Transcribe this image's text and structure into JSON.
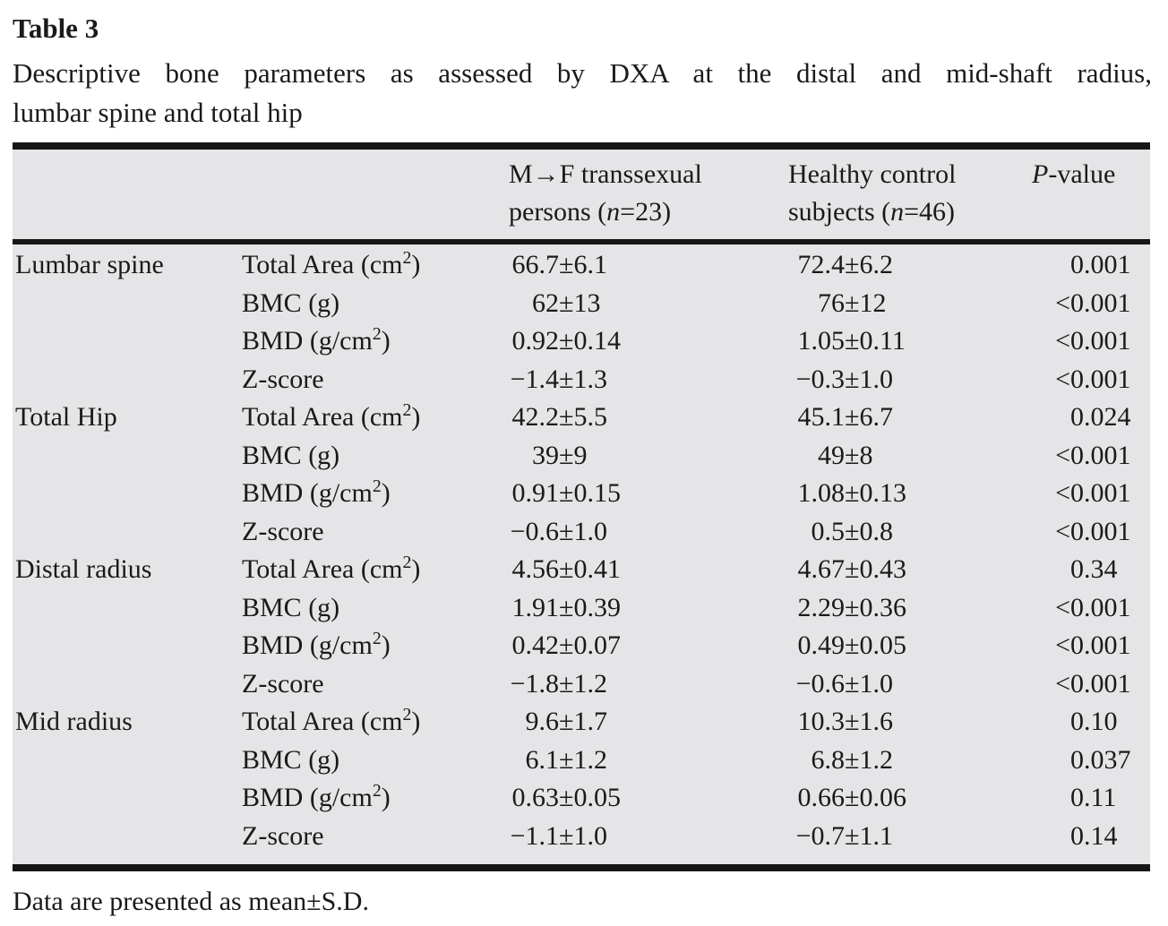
{
  "title": "Table 3",
  "caption_line1": "Descriptive bone parameters as assessed by DXA at the distal and mid-shaft radius,",
  "caption_line2": "lumbar spine and total hip",
  "columns": {
    "transsexual_line1": "M→F transsexual",
    "transsexual_line2": "persons (n=23)",
    "control_line1": "Healthy control",
    "control_line2": "subjects (n=46)",
    "p_value": "P-value"
  },
  "sections": [
    {
      "site": "Lumbar spine",
      "rows": [
        {
          "param": "Total Area (cm²)",
          "mf": "66.7±6.1",
          "hc": "72.4±6.2",
          "p": "0.001"
        },
        {
          "param": "BMC (g)",
          "mf": "62±13",
          "hc": "76±12",
          "p": "<0.001"
        },
        {
          "param": "BMD (g/cm²)",
          "mf": "0.92±0.14",
          "hc": "1.05±0.11",
          "p": "<0.001"
        },
        {
          "param": "Z-score",
          "mf": "−1.4±1.3",
          "hc": "−0.3±1.0",
          "p": "<0.001"
        }
      ]
    },
    {
      "site": "Total Hip",
      "rows": [
        {
          "param": "Total Area (cm²)",
          "mf": "42.2±5.5",
          "hc": "45.1±6.7",
          "p": "0.024"
        },
        {
          "param": "BMC (g)",
          "mf": "39±9",
          "hc": "49±8",
          "p": "<0.001"
        },
        {
          "param": "BMD (g/cm²)",
          "mf": "0.91±0.15",
          "hc": "1.08±0.13",
          "p": "<0.001"
        },
        {
          "param": "Z-score",
          "mf": "−0.6±1.0",
          "hc": "0.5±0.8",
          "p": "<0.001"
        }
      ]
    },
    {
      "site": "Distal radius",
      "rows": [
        {
          "param": "Total Area (cm²)",
          "mf": "4.56±0.41",
          "hc": "4.67±0.43",
          "p": "0.34"
        },
        {
          "param": "BMC (g)",
          "mf": "1.91±0.39",
          "hc": "2.29±0.36",
          "p": "<0.001"
        },
        {
          "param": "BMD (g/cm²)",
          "mf": "0.42±0.07",
          "hc": "0.49±0.05",
          "p": "<0.001"
        },
        {
          "param": "Z-score",
          "mf": "−1.8±1.2",
          "hc": "−0.6±1.0",
          "p": "<0.001"
        }
      ]
    },
    {
      "site": "Mid radius",
      "rows": [
        {
          "param": "Total Area (cm²)",
          "mf": "9.6±1.7",
          "hc": "10.3±1.6",
          "p": "0.10"
        },
        {
          "param": "BMC (g)",
          "mf": "6.1±1.2",
          "hc": "6.8±1.2",
          "p": "0.037"
        },
        {
          "param": "BMD (g/cm²)",
          "mf": "0.63±0.05",
          "hc": "0.66±0.06",
          "p": "0.11"
        },
        {
          "param": "Z-score",
          "mf": "−1.1±1.0",
          "hc": "−0.7±1.1",
          "p": "0.14"
        }
      ]
    }
  ],
  "footnote": "Data are presented as mean±S.D.",
  "colors": {
    "table_background": "#e5e5e7",
    "text": "#1a1a1a",
    "rule": "#161616",
    "page_background": "#ffffff"
  }
}
